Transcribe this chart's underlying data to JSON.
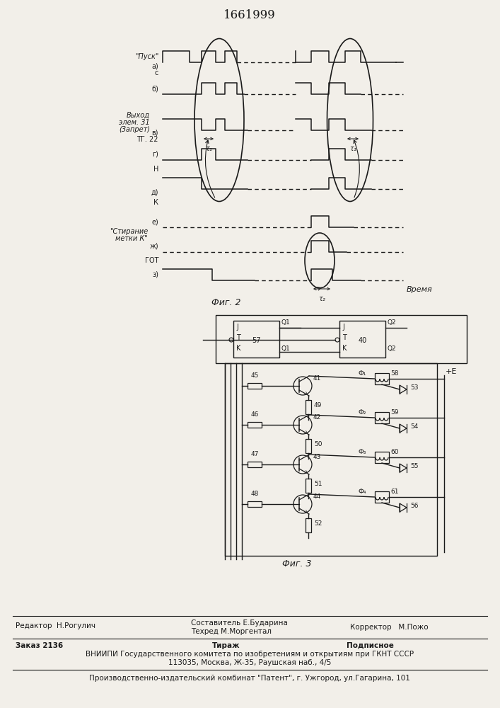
{
  "title": "1661999",
  "bg_color": "#f2efe9",
  "line_color": "#1a1a1a",
  "footer": {
    "editor": "Редактор  Н.Рогулич",
    "composer": "Составитель Е.Бударина",
    "techred": "Техред М.Моргентал",
    "corrector": "Корректор   М.Пожо",
    "order": "Заказ 2136",
    "tirazh": "Тираж",
    "podpisnoe": "Подписное",
    "vniippi": "ВНИИПИ Государственного комитета по изобретениям и открытиям при ГКНТ СССР",
    "address": "113035, Москва, Ж-35, Раушская наб., 4/5",
    "factory": "Производственно-издательский комбинат \"Патент\", г. Ужгород, ул.Гагарина, 101"
  }
}
